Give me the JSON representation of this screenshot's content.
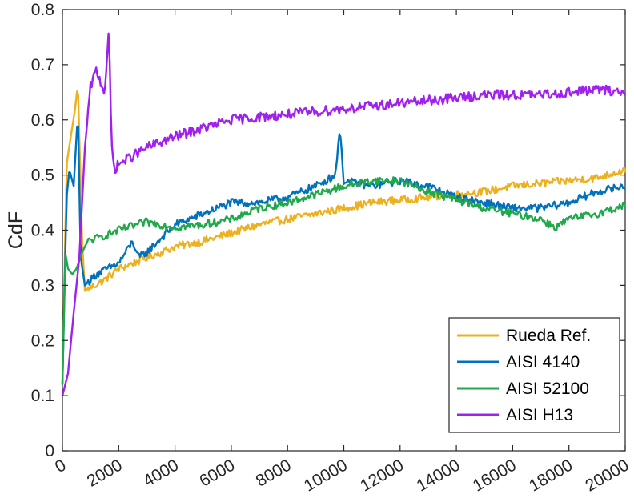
{
  "chart_data": {
    "type": "line",
    "title": "",
    "xlabel": "",
    "ylabel": "CdF",
    "xlim": [
      0,
      20000
    ],
    "ylim": [
      0,
      0.8
    ],
    "x_ticks": [
      "0",
      "2000",
      "4000",
      "6000",
      "8000",
      "10000",
      "12000",
      "14000",
      "16000",
      "18000",
      "20000"
    ],
    "y_ticks": [
      "0",
      "0.1",
      "0.2",
      "0.3",
      "0.4",
      "0.5",
      "0.6",
      "0.7",
      "0.8"
    ],
    "grid": false,
    "legend_position": "bottom-right",
    "series": [
      {
        "name": "Rueda Ref.",
        "color": "#EDB120",
        "x": [
          0,
          150,
          300,
          450,
          550,
          700,
          800,
          1500,
          2000,
          3000,
          4000,
          5000,
          6000,
          7000,
          8000,
          9000,
          10000,
          11000,
          12000,
          13000,
          14000,
          15000,
          16000,
          17000,
          18000,
          19000,
          20000
        ],
        "y": [
          0.12,
          0.52,
          0.57,
          0.62,
          0.665,
          0.38,
          0.29,
          0.31,
          0.33,
          0.35,
          0.37,
          0.38,
          0.395,
          0.41,
          0.42,
          0.43,
          0.44,
          0.45,
          0.455,
          0.46,
          0.465,
          0.47,
          0.48,
          0.485,
          0.49,
          0.495,
          0.51
        ]
      },
      {
        "name": "AISI 4140",
        "color": "#0072BD",
        "x": [
          0,
          150,
          250,
          400,
          550,
          650,
          800,
          1200,
          2000,
          2500,
          2700,
          3000,
          4000,
          5000,
          6000,
          7000,
          8000,
          9000,
          9700,
          9850,
          10000,
          11000,
          12000,
          13000,
          14000,
          15000,
          16000,
          17000,
          18000,
          19000,
          20000
        ],
        "y": [
          0.12,
          0.46,
          0.51,
          0.48,
          0.615,
          0.35,
          0.3,
          0.32,
          0.34,
          0.38,
          0.35,
          0.36,
          0.41,
          0.43,
          0.45,
          0.45,
          0.46,
          0.48,
          0.5,
          0.585,
          0.49,
          0.48,
          0.49,
          0.48,
          0.46,
          0.45,
          0.44,
          0.44,
          0.45,
          0.47,
          0.48
        ]
      },
      {
        "name": "AISI 52100",
        "color": "#20A84A",
        "x": [
          0,
          100,
          200,
          350,
          500,
          700,
          900,
          1500,
          2000,
          3000,
          4000,
          5000,
          6000,
          7000,
          8000,
          9000,
          10000,
          11000,
          12000,
          13000,
          14000,
          15000,
          16000,
          17000,
          17500,
          18000,
          19000,
          20000
        ],
        "y": [
          0.12,
          0.36,
          0.33,
          0.32,
          0.33,
          0.36,
          0.38,
          0.39,
          0.4,
          0.415,
          0.405,
          0.41,
          0.42,
          0.44,
          0.45,
          0.465,
          0.48,
          0.49,
          0.49,
          0.47,
          0.455,
          0.44,
          0.43,
          0.42,
          0.405,
          0.42,
          0.43,
          0.445
        ]
      },
      {
        "name": "AISI H13",
        "color": "#A020F0",
        "x": [
          0,
          200,
          400,
          600,
          800,
          1000,
          1200,
          1500,
          1650,
          1750,
          1850,
          2000,
          3000,
          4000,
          5000,
          6000,
          7000,
          8000,
          9000,
          10000,
          11000,
          12000,
          13000,
          14000,
          15000,
          16000,
          17000,
          18000,
          19000,
          20000
        ],
        "y": [
          0.1,
          0.14,
          0.25,
          0.35,
          0.55,
          0.66,
          0.69,
          0.65,
          0.76,
          0.55,
          0.51,
          0.52,
          0.55,
          0.57,
          0.585,
          0.6,
          0.605,
          0.61,
          0.615,
          0.62,
          0.625,
          0.63,
          0.635,
          0.64,
          0.645,
          0.645,
          0.645,
          0.65,
          0.655,
          0.65
        ]
      }
    ]
  }
}
